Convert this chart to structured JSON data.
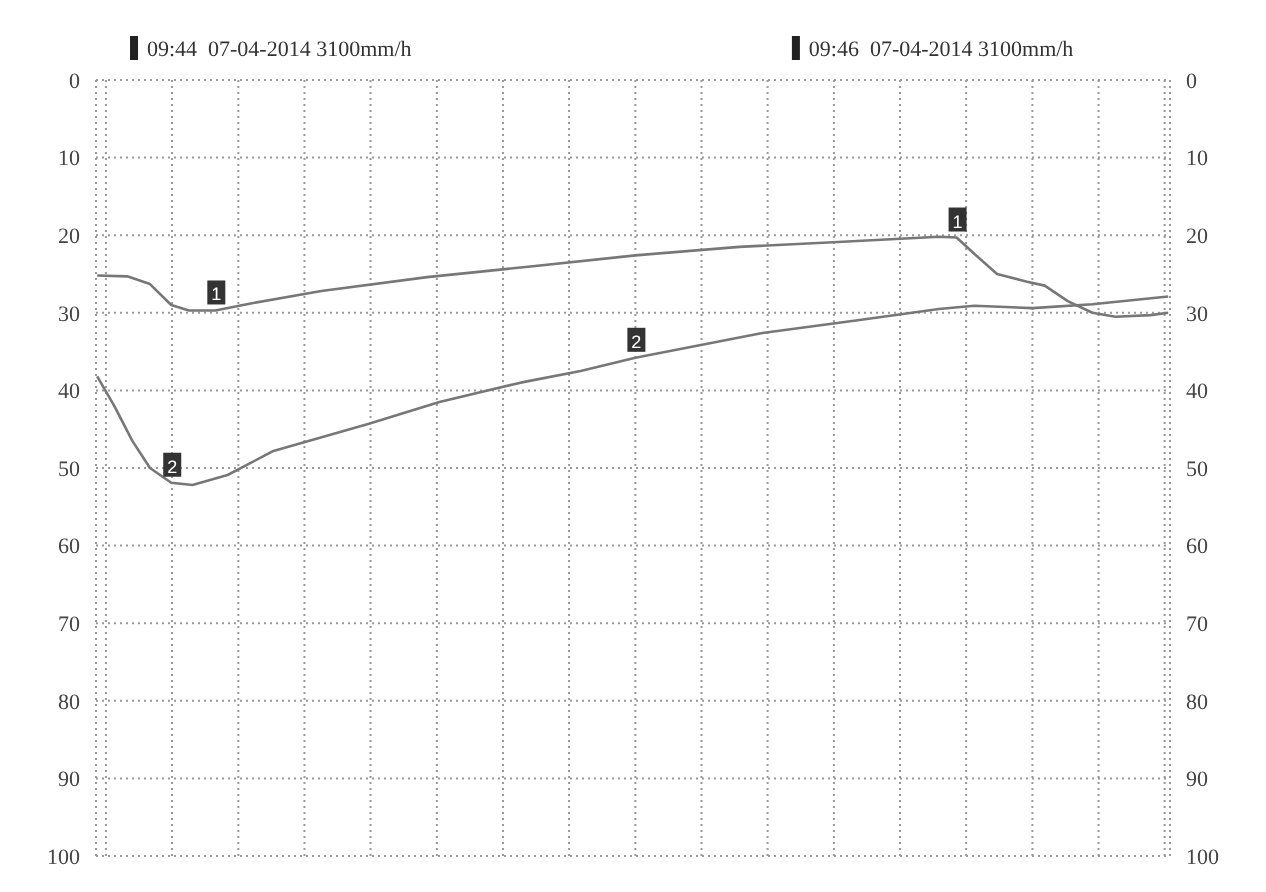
{
  "chart_data": {
    "type": "line",
    "grid": true,
    "marker": "none",
    "xlim": [
      9.7295,
      9.7836
    ],
    "xticks": [
      {
        "value": 9.73,
        "label": null
      },
      {
        "value": 9.73333,
        "label": "09:44"
      },
      {
        "value": 9.73667,
        "label": null
      },
      {
        "value": 9.74,
        "label": null
      },
      {
        "value": 9.74333,
        "label": null
      },
      {
        "value": 9.74667,
        "label": null
      },
      {
        "value": 9.75,
        "label": null
      },
      {
        "value": 9.75333,
        "label": null
      },
      {
        "value": 9.75667,
        "label": null
      },
      {
        "value": 9.76,
        "label": null
      },
      {
        "value": 9.76333,
        "label": null
      },
      {
        "value": 9.76667,
        "label": "09:46"
      },
      {
        "value": 9.77,
        "label": null
      },
      {
        "value": 9.77333,
        "label": null
      },
      {
        "value": 9.77667,
        "label": null
      },
      {
        "value": 9.78,
        "label": null
      },
      {
        "value": 9.78333,
        "label": null
      }
    ],
    "ylim": [
      100,
      0
    ],
    "yticks": [
      0,
      10,
      20,
      30,
      40,
      50,
      60,
      70,
      80,
      90,
      100
    ],
    "y2lim": [
      100,
      0
    ],
    "y2ticks": [
      0,
      10,
      20,
      30,
      40,
      50,
      60,
      70,
      80,
      90,
      100
    ],
    "annotations": [
      "07-04-2014 3100mm/h",
      "07-04-2014 3100mm/h"
    ],
    "series": [
      {
        "name": "1",
        "color": "#777777",
        "x": [
          9.72956,
          9.73107,
          9.73222,
          9.73329,
          9.73418,
          9.73551,
          9.73729,
          9.74085,
          9.74618,
          9.75151,
          9.75667,
          9.76191,
          9.76663,
          9.77196,
          9.77285,
          9.77374,
          9.77489,
          9.7764,
          9.77729,
          9.77845,
          9.77969,
          9.78085,
          9.78262,
          9.78351
        ],
        "values": [
          25.2,
          25.3,
          26.3,
          29,
          29.7,
          29.7,
          28.8,
          27.2,
          25.4,
          24,
          22.6,
          21.5,
          20.9,
          20.2,
          20.3,
          22.4,
          25,
          26,
          26.5,
          28.5,
          30,
          30.5,
          30.3,
          30
        ]
      },
      {
        "name": "2",
        "color": "#777777",
        "x": [
          9.72956,
          9.73044,
          9.73133,
          9.73222,
          9.73329,
          9.73436,
          9.73613,
          9.73844,
          9.74325,
          9.7468,
          9.75089,
          9.75391,
          9.75667,
          9.76307,
          9.76778,
          9.77196,
          9.77374,
          9.77667,
          9.77969,
          9.78351
        ],
        "values": [
          38.2,
          42.1,
          46.5,
          50,
          51.9,
          52.2,
          50.9,
          47.8,
          44.3,
          41.5,
          39,
          37.5,
          35.8,
          32.6,
          31,
          29.5,
          29.1,
          29.4,
          28.9,
          27.9
        ]
      }
    ]
  }
}
